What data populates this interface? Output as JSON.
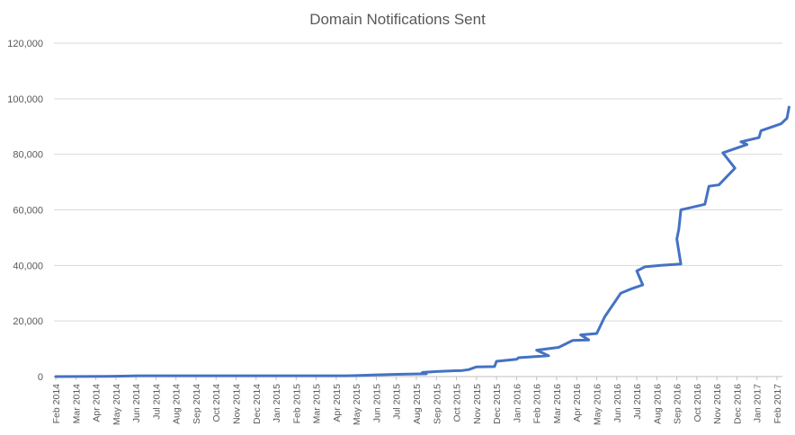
{
  "chart_data": {
    "type": "line",
    "title": "Domain Notifications Sent",
    "xlabel": "",
    "ylabel": "",
    "ylim": [
      0,
      120000
    ],
    "yticks": [
      "0",
      "20,000",
      "40,000",
      "60,000",
      "80,000",
      "100,000",
      "120,000"
    ],
    "ytick_values": [
      0,
      20000,
      40000,
      60000,
      80000,
      100000,
      120000
    ],
    "x_categories": [
      "Feb 2014",
      "Mar 2014",
      "Apr 2014",
      "May 2014",
      "Jun 2014",
      "Jul 2014",
      "Aug 2014",
      "Sep 2014",
      "Oct 2014",
      "Nov 2014",
      "Dec 2014",
      "Jan 2015",
      "Feb 2015",
      "Mar 2015",
      "Apr 2015",
      "May 2015",
      "Jun 2015",
      "Jul 2015",
      "Aug 2015",
      "Sep 2015",
      "Oct 2015",
      "Nov 2015",
      "Dec 2015",
      "Jan 2016",
      "Feb 2016",
      "Mar 2016",
      "Apr 2016",
      "May 2016",
      "Jun 2016",
      "Jul 2016",
      "Aug 2016",
      "Sep 2016",
      "Oct 2016",
      "Nov 2016",
      "Dec 2016",
      "Jan 2017",
      "Feb 2017"
    ],
    "grid": true,
    "legend": "none",
    "series": [
      {
        "color": "#4472c4",
        "points": [
          [
            "Feb 2014",
            0
          ],
          [
            "Apr 2014",
            50
          ],
          [
            "May 2014",
            150
          ],
          [
            "Jun 2014",
            300
          ],
          [
            "Jul 2014",
            300
          ],
          [
            "Aug 2014",
            300
          ],
          [
            "Oct 2014",
            300
          ],
          [
            "Dec 2014",
            300
          ],
          [
            "Feb 2015",
            300
          ],
          [
            "Apr 2015",
            300
          ],
          [
            "May 2015",
            350
          ],
          [
            "Jun 2015",
            600
          ],
          [
            "Jul 2015",
            800
          ],
          [
            "Aug 2015",
            1000
          ],
          [
            "Aug 2015",
            1500
          ],
          [
            "Sep 2015",
            1800
          ],
          [
            "Oct 2015",
            2200
          ],
          [
            "Oct 2015",
            2500
          ],
          [
            "Nov 2015",
            3500
          ],
          [
            "Nov 2015",
            3600
          ],
          [
            "Dec 2015",
            5500
          ],
          [
            "Jan 2016",
            6200
          ],
          [
            "Jan 2016",
            6800
          ],
          [
            "Feb 2016",
            7500
          ],
          [
            "Feb 2016",
            9500
          ],
          [
            "Mar 2016",
            10500
          ],
          [
            "Mar 2016",
            13000
          ],
          [
            "Apr 2016",
            13200
          ],
          [
            "Apr 2016",
            15000
          ],
          [
            "May 2016",
            15500
          ],
          [
            "May 2016",
            21500
          ],
          [
            "Jun 2016",
            30000
          ],
          [
            "Jun 2016",
            31500
          ],
          [
            "Jul 2016",
            33000
          ],
          [
            "Jul 2016",
            38000
          ],
          [
            "Jul 2016",
            39500
          ],
          [
            "Aug 2016",
            40000
          ],
          [
            "Sep 2016",
            40500
          ],
          [
            "Sep 2016",
            49500
          ],
          [
            "Sep 2016",
            53000
          ],
          [
            "Sep 2016",
            60000
          ],
          [
            "Oct 2016",
            62000
          ],
          [
            "Oct 2016",
            68500
          ],
          [
            "Nov 2016",
            69000
          ],
          [
            "Nov 2016",
            75000
          ],
          [
            "Nov 2016",
            80500
          ],
          [
            "Dec 2016",
            83500
          ],
          [
            "Dec 2016",
            84500
          ],
          [
            "Jan 2017",
            86000
          ],
          [
            "Jan 2017",
            88500
          ],
          [
            "Feb 2017",
            91000
          ],
          [
            "Feb 2017",
            93000
          ],
          [
            "Feb 2017",
            97000
          ]
        ],
        "offsets": [
          0,
          0.5,
          0.3,
          0.1,
          0.5,
          0,
          0,
          0.5,
          0,
          0.5,
          0,
          0,
          0,
          0.5,
          0.3,
          0,
          0.3,
          0.6,
          0,
          0.9,
          0,
          0,
          0.1,
          0.6,
          0,
          0.1,
          0.8,
          0.6,
          0.2,
          0,
          0.4,
          0.2,
          0.7,
          0.3,
          0,
          0.4,
          0.2,
          0.2,
          0.0,
          0.1,
          0.2,
          0.4,
          0.6,
          0.1,
          0.9,
          0.3,
          0.5,
          0.2,
          0.1,
          0.2,
          0.2,
          0.5,
          0.6
        ]
      }
    ]
  }
}
